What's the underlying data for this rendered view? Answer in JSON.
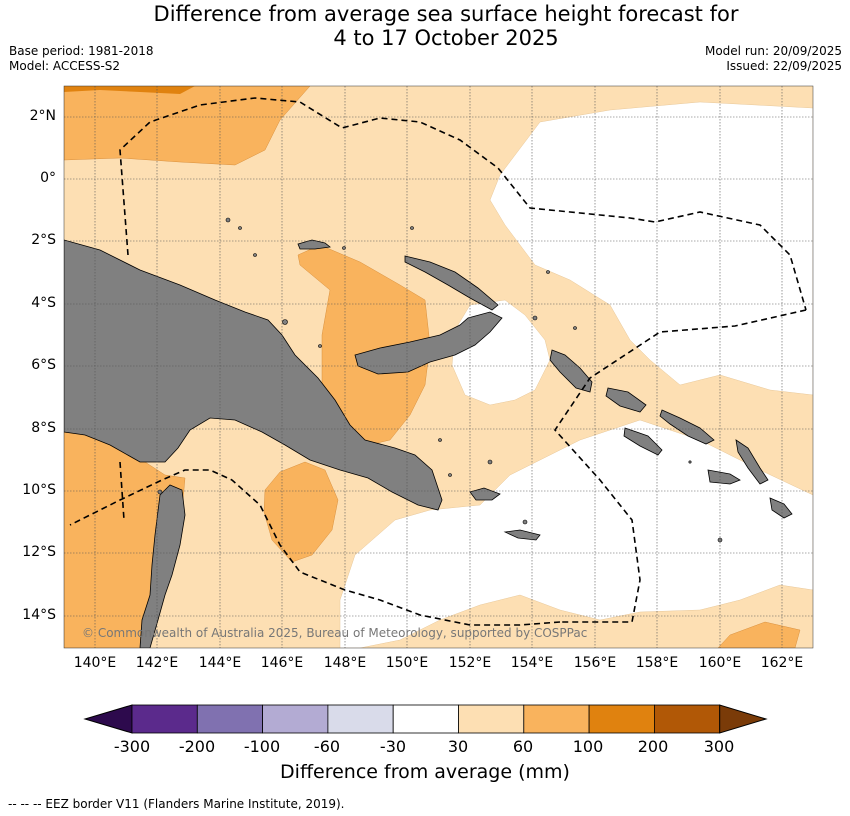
{
  "title_line1": "Difference from average sea surface height forecast for",
  "title_line2": "4 to 17 October 2025",
  "base_period": "Base period: 1981-2018",
  "model": "Model: ACCESS-S2",
  "model_run": "Model run: 20/09/2025",
  "issued": "Issued: 22/09/2025",
  "lat_labels": [
    "2°N",
    "0°",
    "2°S",
    "4°S",
    "6°S",
    "8°S",
    "10°S",
    "12°S",
    "14°S"
  ],
  "lon_labels": [
    "140°E",
    "142°E",
    "144°E",
    "146°E",
    "148°E",
    "150°E",
    "152°E",
    "154°E",
    "156°E",
    "158°E",
    "160°E",
    "162°E"
  ],
  "copyright": "© Commonwealth of Australia 2025, Bureau of Meteorology, supported by COSPPac",
  "colorbar": {
    "title": "Difference from average (mm)",
    "labels": [
      "-300",
      "-200",
      "-100",
      "-60",
      "-30",
      "30",
      "60",
      "100",
      "200",
      "300"
    ],
    "colors": [
      "#2d0a4d",
      "#5b2a8c",
      "#8071b0",
      "#b3abd3",
      "#d9dbea",
      "#ffffff",
      "#fddfb3",
      "#f9b35d",
      "#e0820f",
      "#b15806",
      "#7a3b08"
    ]
  },
  "legend_note": "-- -- -- EEZ border V11 (Flanders Marine Institute, 2019)."
}
